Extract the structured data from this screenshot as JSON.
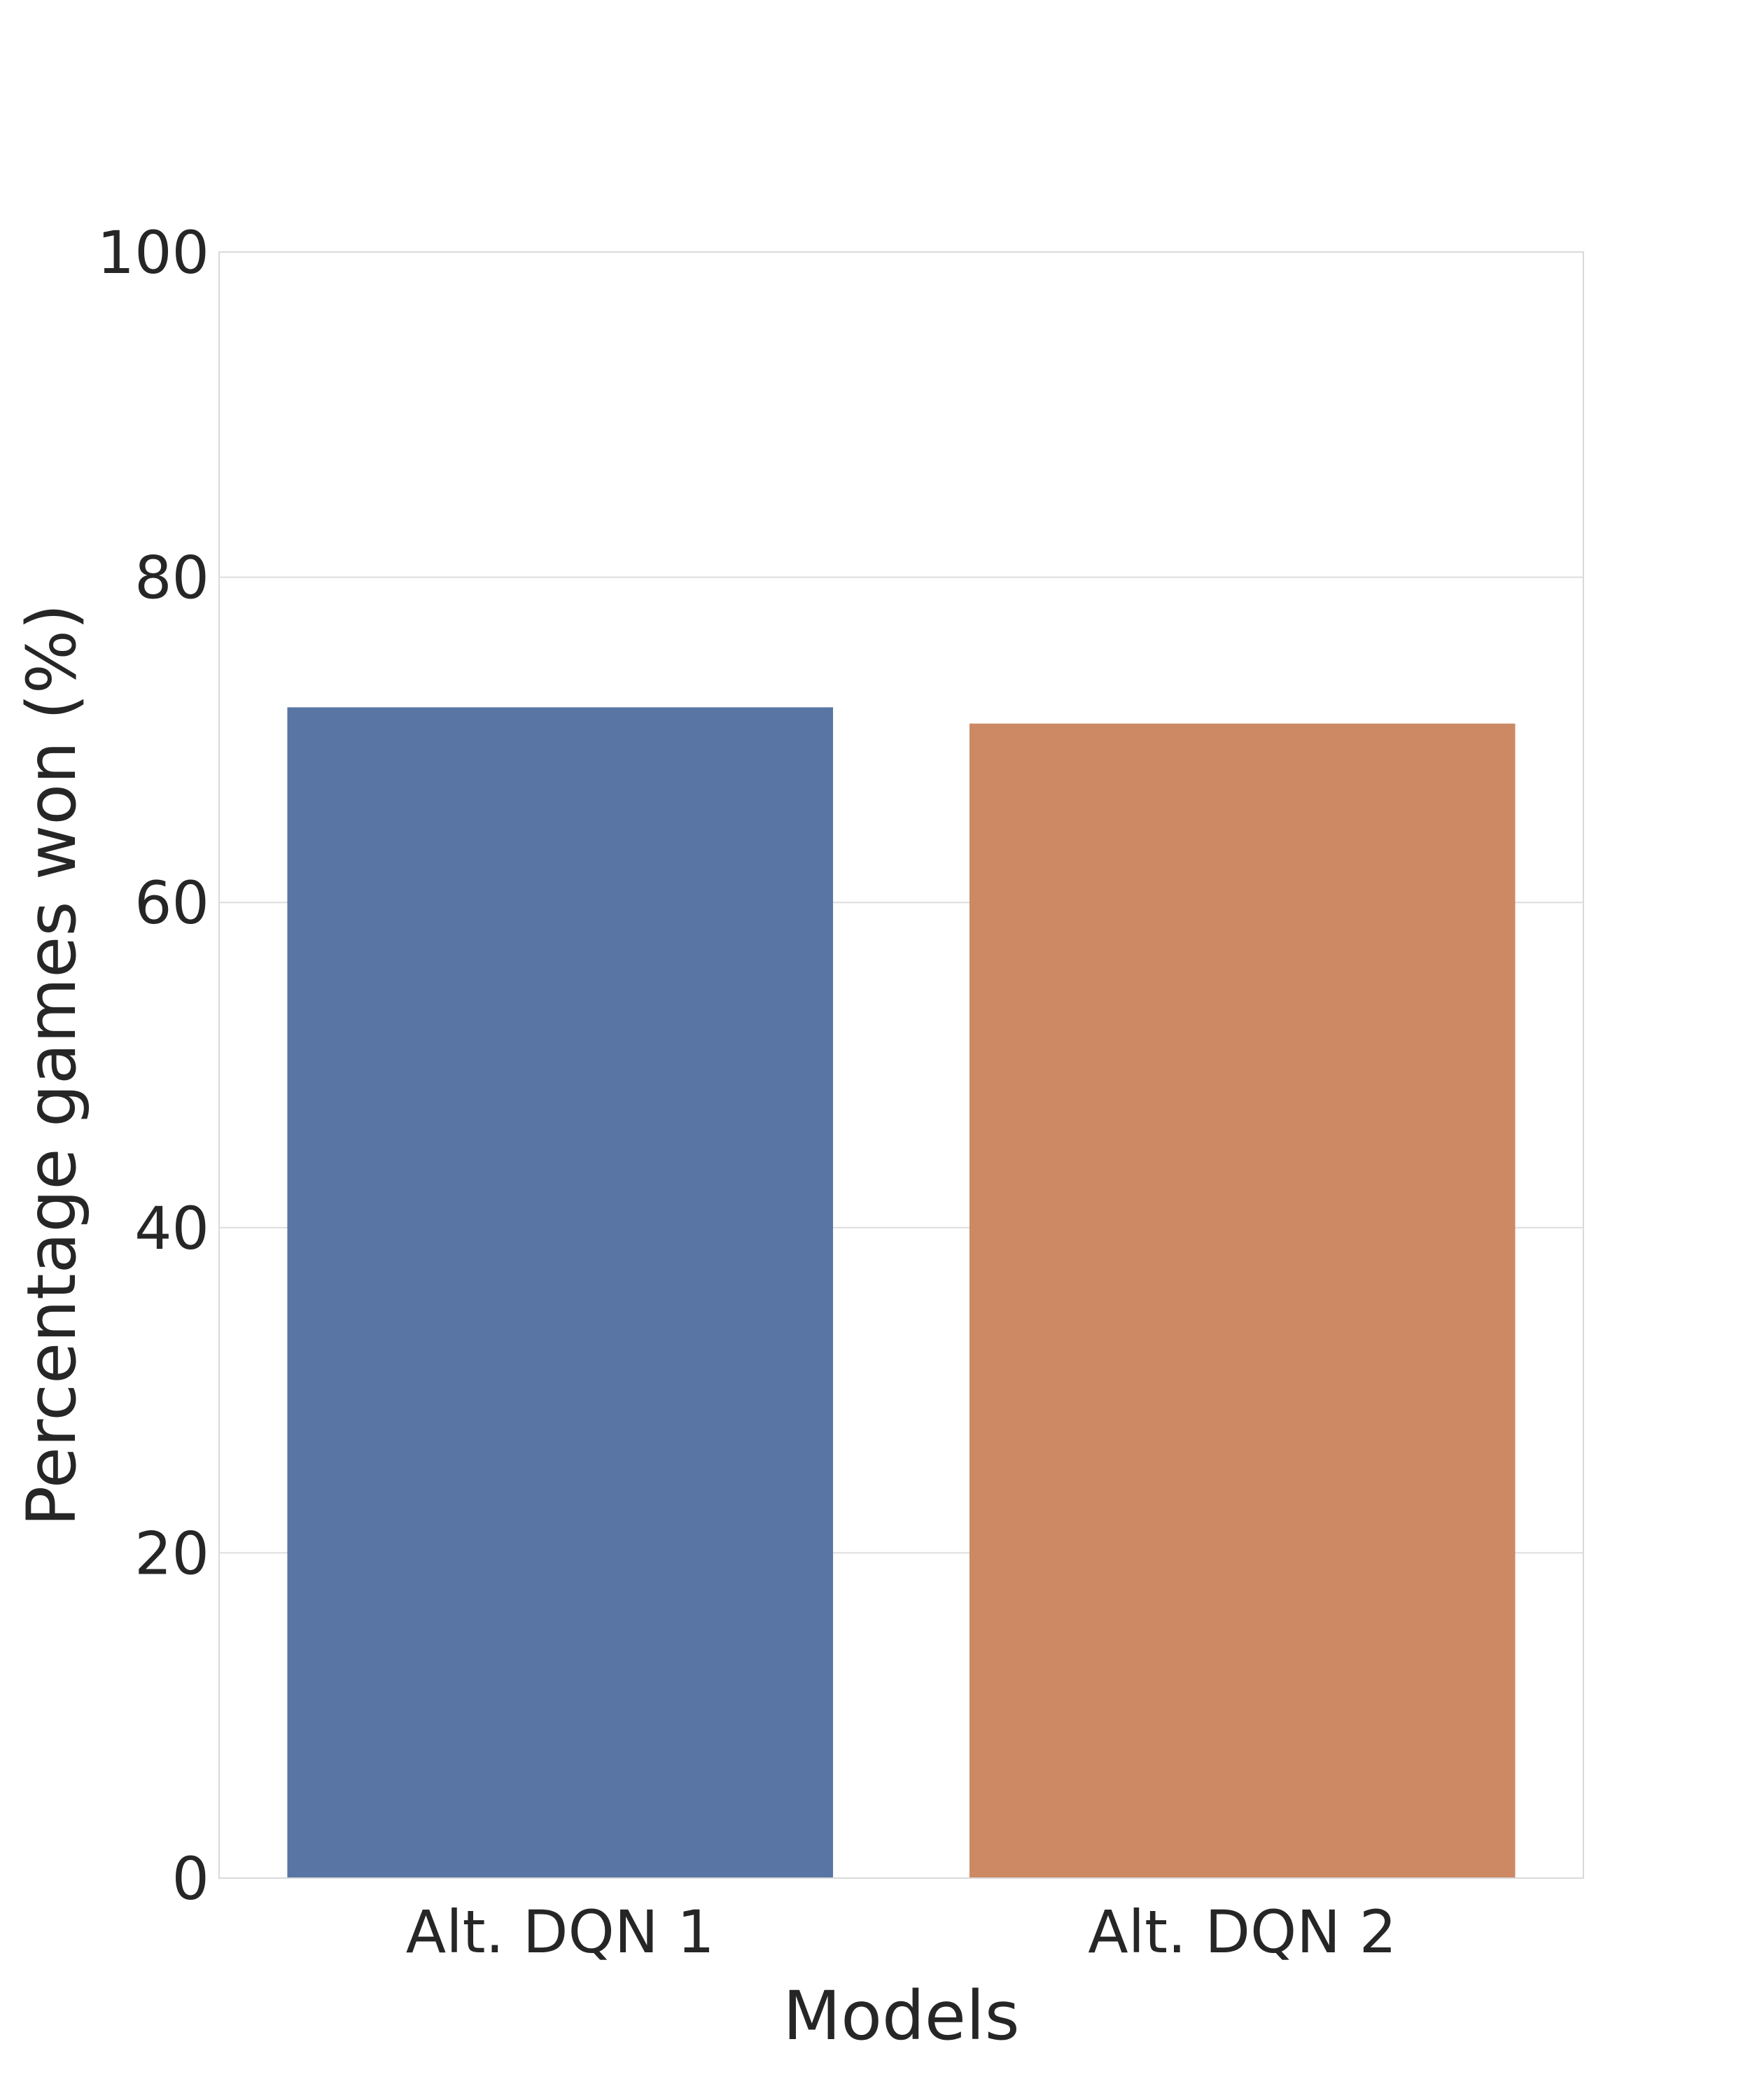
{
  "chart_data": {
    "type": "bar",
    "categories": [
      "Alt. DQN 1",
      "Alt. DQN 2"
    ],
    "values": [
      72,
      71
    ],
    "colors": [
      "#5975a4",
      "#cc8963"
    ],
    "xlabel": "Models",
    "ylabel": "Percentage games won (%)",
    "ylim": [
      0,
      100
    ],
    "yticks": [
      0,
      20,
      40,
      60,
      80,
      100
    ],
    "grid": "horizontal",
    "legend": "none"
  }
}
